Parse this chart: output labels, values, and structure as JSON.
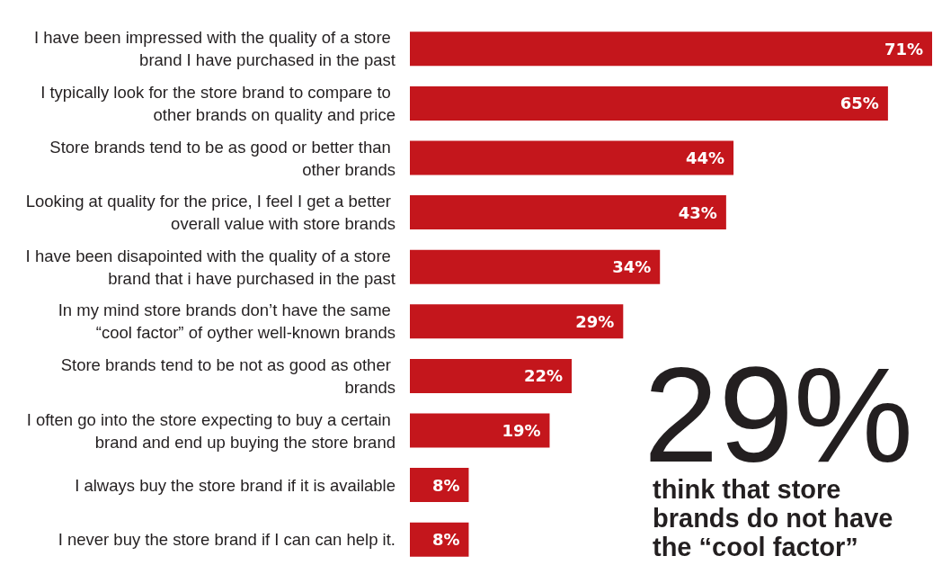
{
  "chart_data": {
    "type": "bar",
    "orientation": "horizontal",
    "data_labels": true,
    "categories": [
      "I have been impressed with the quality of a store brand I have purchased in the past",
      "I typically look for the store brand to compare to other brands on quality and price",
      "Store brands tend to be as good or better than other brands",
      "Looking at quality for the price, I feel I get a better overall value with store brands",
      "I have been disapointed with the quality of a store brand that i have purchased in the past",
      "In my mind store brands don’t have the same “cool factor” of oyther well-known brands",
      "Store brands tend to be not as good as other brands",
      "I often go into the store expecting to buy a certain brand and end up buying the store brand",
      "I always buy the store brand if it is available",
      "I never buy the store brand if I can can help it."
    ],
    "values": [
      71,
      65,
      44,
      43,
      34,
      29,
      22,
      19,
      8,
      8
    ],
    "value_labels": [
      "71%",
      "65%",
      "44%",
      "43%",
      "34%",
      "29%",
      "22%",
      "19%",
      "8%",
      "8%"
    ],
    "color": "#c4161c",
    "annotations": [
      "29%",
      "think that store brands do not have the “cool factor”"
    ]
  }
}
